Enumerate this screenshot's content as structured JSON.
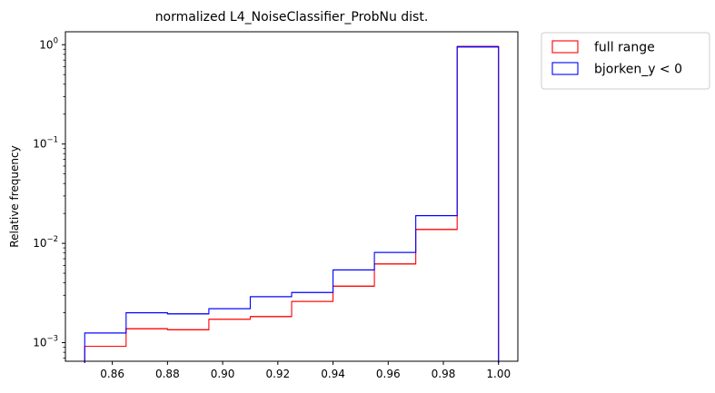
{
  "chart_data": {
    "type": "histogram",
    "title": "normalized L4_NoiseClassifier_ProbNu dist.",
    "xlabel": "",
    "ylabel": "Relative frequency",
    "xlim": [
      0.843,
      1.007
    ],
    "ylim": [
      0.00065,
      1.35
    ],
    "yscale": "log",
    "grid": false,
    "legend_position": "outside-top-right",
    "bin_edges": [
      0.85,
      0.865,
      0.88,
      0.895,
      0.91,
      0.925,
      0.94,
      0.955,
      0.97,
      0.985,
      1.0
    ],
    "x_ticks": [
      {
        "value": 0.86,
        "label": "0.86"
      },
      {
        "value": 0.88,
        "label": "0.88"
      },
      {
        "value": 0.9,
        "label": "0.90"
      },
      {
        "value": 0.92,
        "label": "0.92"
      },
      {
        "value": 0.94,
        "label": "0.94"
      },
      {
        "value": 0.96,
        "label": "0.96"
      },
      {
        "value": 0.98,
        "label": "0.98"
      },
      {
        "value": 1.0,
        "label": "1.00"
      }
    ],
    "y_ticks": [
      {
        "value": 0.001,
        "base": "10",
        "exp": "−3"
      },
      {
        "value": 0.01,
        "base": "10",
        "exp": "−2"
      },
      {
        "value": 0.1,
        "base": "10",
        "exp": "−1"
      },
      {
        "value": 1,
        "base": "10",
        "exp": "0"
      }
    ],
    "series": [
      {
        "name": "full range",
        "color": "#ff0000",
        "values": [
          0.00092,
          0.00138,
          0.00135,
          0.00172,
          0.00183,
          0.0026,
          0.0037,
          0.0062,
          0.0138,
          0.96
        ]
      },
      {
        "name": "bjorken_y < 0",
        "color": "#0000ff",
        "values": [
          0.00125,
          0.002,
          0.00195,
          0.0022,
          0.0029,
          0.0032,
          0.0054,
          0.0081,
          0.019,
          0.95
        ]
      }
    ]
  }
}
